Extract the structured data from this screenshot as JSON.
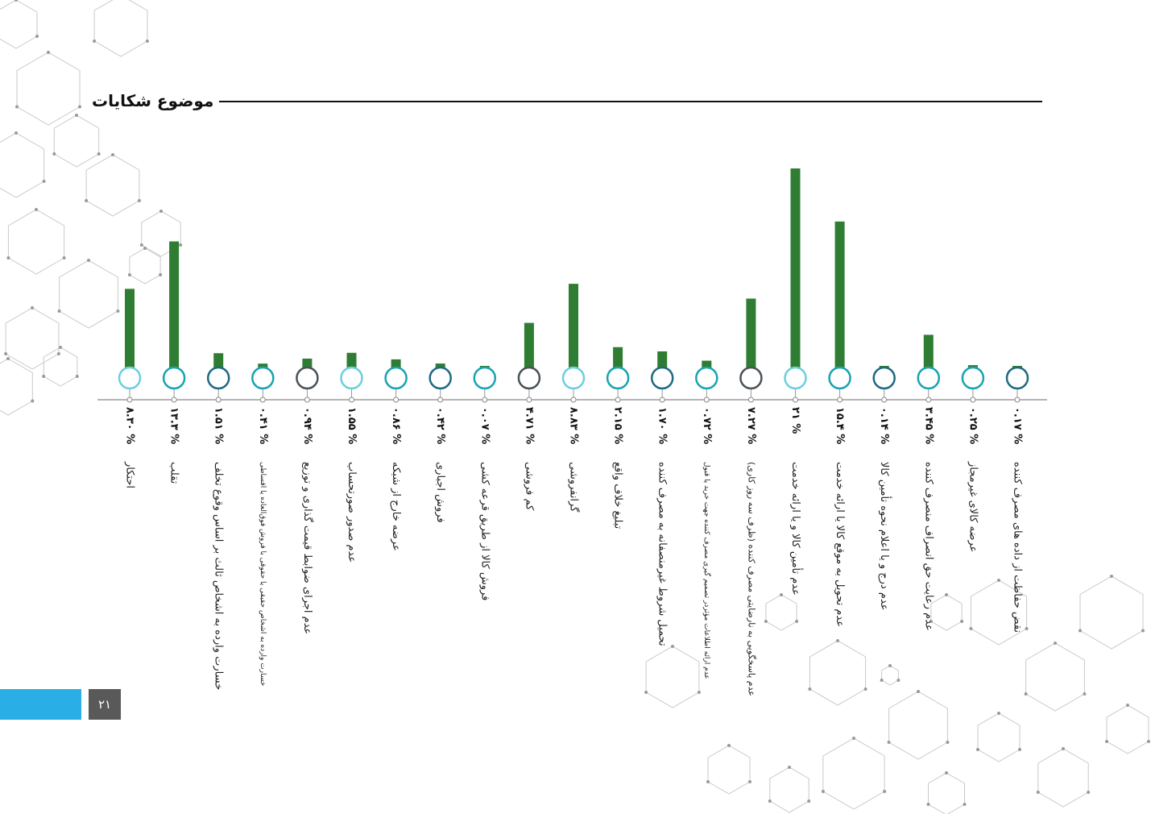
{
  "page": {
    "title": "موضوع شکایات",
    "page_number": "۲۱"
  },
  "colors": {
    "bar": "#2e7d32",
    "ring_teal": "#1aa3b1",
    "ring_light": "#6dcfdd",
    "ring_navy": "#1f6a82",
    "ring_dark": "#4a5359",
    "axis": "#888888",
    "footer_blue": "#29aee6",
    "footer_gray": "#595959"
  },
  "chart_data": {
    "type": "bar",
    "categories": [
      "احتکار",
      "تقلب",
      "خسارت وارده به اشخاص ثالث بر اساس وقوع تخلف",
      "خسارت وارده به اشخاص حقیقی یا حقوقی با فروش فوق‌العاده یا اقساطی",
      "عدم اجرای ضوابط قیمت گذاری و توزیع",
      "عدم صدور صورتحساب",
      "عرضه خارج از شبکه",
      "فروش اجباری",
      "فروش کالا از طریق قرعه کشی",
      "کم فروشی",
      "گرانفروشی",
      "تبلیغ خلاف واقع",
      "تحمیل شروط غیرمنصفانه به مصرف کننده",
      "عدم ارائه اطلاعات مؤثردر تصمیم گیری مصرف کننده جهت خرید یا قبول",
      "عدم پاسخگویی به نارضایتی مصرف کننده (ظرف سه روز کاری)",
      "عدم تأمین کالا و یا ارائه خدمت",
      "عدم تحویل به موقع کالا یا ارائه خدمت",
      "عدم درج و یا اعلام نحوه تأمین کالا",
      "عدم رعایت حق انصراف منصرف کننده",
      "عرضه کالای غیرمجاز",
      "نقض حفاظت از داده های مصرف کننده"
    ],
    "values": [
      8.3,
      13.3,
      1.51,
      0.41,
      0.94,
      1.55,
      0.86,
      0.42,
      0.07,
      4.71,
      8.83,
      2.15,
      1.7,
      0.72,
      7.27,
      21,
      15.4,
      0.14,
      3.45,
      0.25,
      0.17
    ],
    "value_labels": [
      "۸.۳۰ %",
      "۱۳.۳ %",
      "۱.۵۱ %",
      "۰.۴۱ %",
      "۰.۹۴ %",
      "۱.۵۵ %",
      "۰.۸۶ %",
      "۰.۴۲ %",
      "۰.۰۷ %",
      "۴.۷۱ %",
      "۸.۸۳ %",
      "۲.۱۵ %",
      "۱.۷۰ %",
      "۰.۷۲ %",
      "۷.۲۷ %",
      "۲۱ %",
      "۱۵.۴ %",
      "۰.۱۴ %",
      "۳.۴۵ %",
      "۰.۲۵ %",
      "۰.۱۷ %"
    ],
    "ring_styles": [
      "light",
      "teal",
      "navy",
      "teal",
      "dark",
      "light",
      "teal",
      "navy",
      "teal",
      "dark",
      "light",
      "teal",
      "navy",
      "teal",
      "dark",
      "light",
      "teal",
      "navy",
      "teal",
      "teal",
      "navy"
    ],
    "ylim": [
      0,
      21
    ],
    "title": "",
    "xlabel": "",
    "ylabel": "",
    "grid": false,
    "legend": "none"
  }
}
